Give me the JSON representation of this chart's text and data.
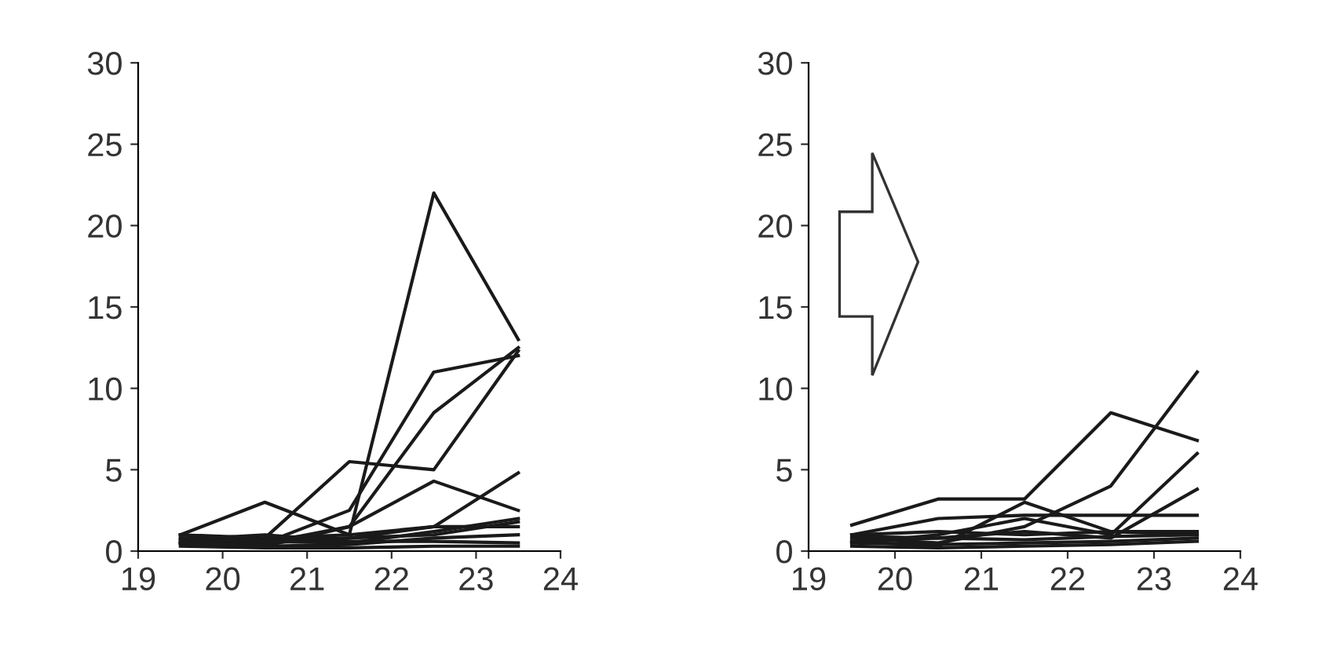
{
  "chart_data": [
    {
      "type": "line",
      "x": [
        19.5,
        20.5,
        21.5,
        22.5,
        23.5
      ],
      "xlim": [
        19,
        24
      ],
      "xticks": [
        19,
        20,
        21,
        22,
        23,
        24
      ],
      "ylim": [
        0,
        30
      ],
      "yticks": [
        0,
        5,
        10,
        15,
        20,
        25,
        30
      ],
      "grid": false,
      "legend": false,
      "marker": "none",
      "line_style": "solid",
      "series": [
        {
          "color": "#1a1a1a",
          "values": [
            1.0,
            0.8,
            1.0,
            22,
            13
          ]
        },
        {
          "color": "#1a1a1a",
          "values": [
            0.8,
            0.5,
            2.5,
            11,
            12
          ]
        },
        {
          "color": "#1a1a1a",
          "values": [
            0.5,
            0.3,
            1.5,
            8.5,
            12.5
          ]
        },
        {
          "color": "#1a1a1a",
          "values": [
            0.6,
            0.8,
            5.5,
            5.0,
            12.3
          ]
        },
        {
          "color": "#1a1a1a",
          "values": [
            1.0,
            3.0,
            1.0,
            1.5,
            1.5
          ]
        },
        {
          "color": "#1a1a1a",
          "values": [
            0.5,
            0.5,
            1.5,
            4.3,
            2.5
          ]
        },
        {
          "color": "#1a1a1a",
          "values": [
            0.5,
            0.5,
            0.8,
            1.5,
            4.8
          ]
        },
        {
          "color": "#1a1a1a",
          "values": [
            1.0,
            0.7,
            0.8,
            1.0,
            1.8
          ]
        },
        {
          "color": "#1a1a1a",
          "values": [
            0.8,
            0.6,
            0.5,
            1.2,
            2.0
          ]
        },
        {
          "color": "#1a1a1a",
          "values": [
            0.5,
            0.3,
            0.4,
            0.8,
            1.0
          ]
        },
        {
          "color": "#1a1a1a",
          "values": [
            0.3,
            0.2,
            0.2,
            0.3,
            0.3
          ]
        },
        {
          "color": "#1a1a1a",
          "values": [
            0.7,
            1.0,
            0.6,
            0.6,
            0.5
          ]
        }
      ]
    },
    {
      "type": "line",
      "x": [
        19.5,
        20.5,
        21.5,
        22.5,
        23.5
      ],
      "xlim": [
        19,
        24
      ],
      "xticks": [
        19,
        20,
        21,
        22,
        23,
        24
      ],
      "ylim": [
        0,
        30
      ],
      "yticks": [
        0,
        5,
        10,
        15,
        20,
        25,
        30
      ],
      "grid": false,
      "legend": false,
      "marker": "none",
      "line_style": "solid",
      "series": [
        {
          "color": "#1a1a1a",
          "values": [
            1.6,
            3.2,
            3.2,
            8.5,
            6.8
          ]
        },
        {
          "color": "#1a1a1a",
          "values": [
            0.8,
            0.5,
            1.5,
            4.0,
            11.0
          ]
        },
        {
          "color": "#1a1a1a",
          "values": [
            0.5,
            1.0,
            2.0,
            1.0,
            6.0
          ]
        },
        {
          "color": "#1a1a1a",
          "values": [
            0.6,
            0.8,
            1.2,
            0.8,
            3.8
          ]
        },
        {
          "color": "#1a1a1a",
          "values": [
            1.0,
            2.0,
            2.2,
            2.2,
            2.2
          ]
        },
        {
          "color": "#1a1a1a",
          "values": [
            0.6,
            0.3,
            3.0,
            1.2,
            1.0
          ]
        },
        {
          "color": "#1a1a1a",
          "values": [
            0.9,
            0.8,
            0.7,
            0.9,
            1.0
          ]
        },
        {
          "color": "#1a1a1a",
          "values": [
            0.5,
            0.4,
            0.5,
            0.6,
            0.8
          ]
        },
        {
          "color": "#1a1a1a",
          "values": [
            0.3,
            0.2,
            0.3,
            0.4,
            0.6
          ]
        },
        {
          "color": "#1a1a1a",
          "values": [
            1.0,
            1.2,
            1.0,
            1.2,
            1.2
          ]
        }
      ]
    }
  ]
}
